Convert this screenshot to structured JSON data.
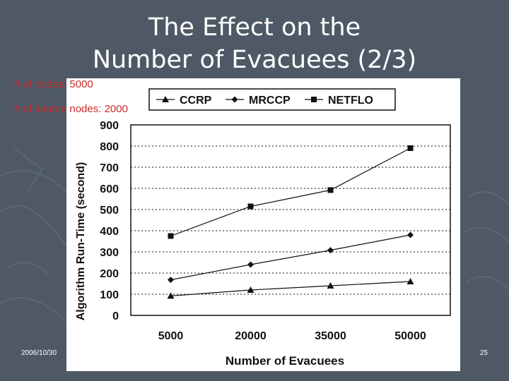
{
  "slide": {
    "title_line1": "The Effect on the",
    "title_line2": "Number of Evacuees (2/3)",
    "note_nodes": "# of nodes: 5000",
    "note_source_nodes": "# of source nodes: 2000",
    "footer_date": "2006/10/30",
    "footer_page": "25"
  },
  "colors": {
    "background": "#4f5966",
    "title": "#ffffff",
    "note": "#cc2a2a",
    "chart_ink": "#111111"
  },
  "chart_data": {
    "type": "line",
    "title": "",
    "xlabel": "Number of Evacuees",
    "ylabel": "Algorithm Run-Time (second)",
    "categories": [
      "5000",
      "20000",
      "35000",
      "50000"
    ],
    "ylim": [
      0,
      900
    ],
    "yticks": [
      "0",
      "100",
      "200",
      "300",
      "400",
      "500",
      "600",
      "700",
      "800",
      "900"
    ],
    "grid": "horizontal-dotted",
    "legend_position": "top",
    "series": [
      {
        "name": "CCRP",
        "marker": "triangle",
        "values": [
          92,
          120,
          140,
          160
        ]
      },
      {
        "name": "MRCCP",
        "marker": "diamond",
        "values": [
          168,
          240,
          308,
          380
        ]
      },
      {
        "name": "NETFLO",
        "marker": "square",
        "values": [
          375,
          515,
          592,
          790
        ]
      }
    ]
  }
}
